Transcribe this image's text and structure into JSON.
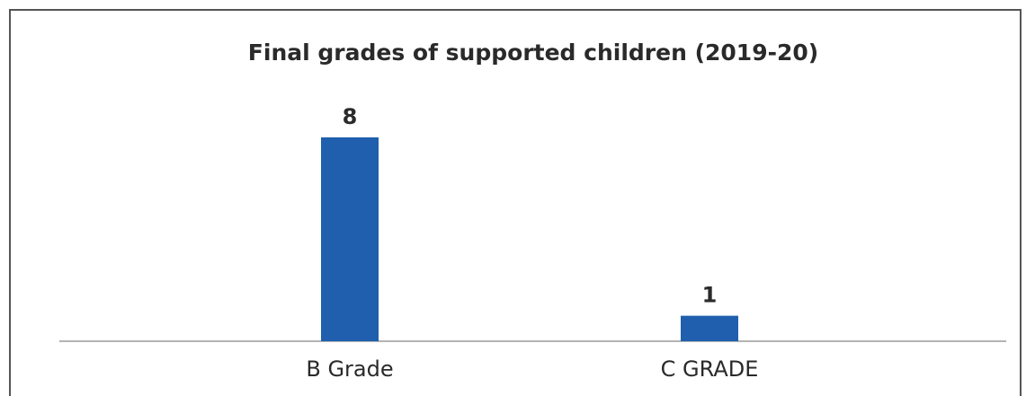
{
  "chart_data": {
    "type": "bar",
    "title": "Final grades of supported children (2019-20)",
    "categories": [
      "B Grade",
      "C GRADE"
    ],
    "values": [
      8,
      1
    ],
    "data_labels": [
      "8",
      "1"
    ],
    "xlabel": "",
    "ylabel": "",
    "ylim": [
      0,
      8
    ],
    "grid": false,
    "legend": "none",
    "bar_color": "#1f5fad",
    "axis_color": "#9a9a9a",
    "frame_color": "#555555",
    "text_color": "#2a2a2a"
  }
}
